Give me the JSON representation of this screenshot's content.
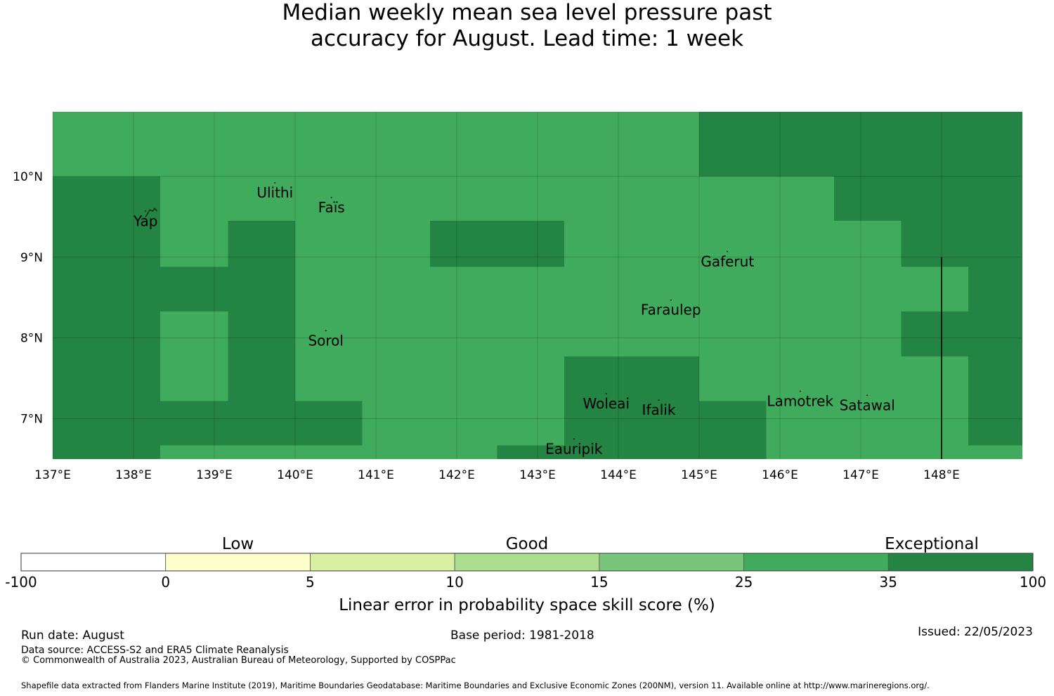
{
  "title": {
    "line1": "Median weekly mean sea level pressure past",
    "line2": "accuracy for August. Lead time: 1 week"
  },
  "map": {
    "lon_range": [
      137,
      149
    ],
    "lat_range": [
      6.5,
      10.8
    ],
    "lon_ticks": [
      {
        "value": 137,
        "label": "137°E"
      },
      {
        "value": 138,
        "label": "138°E"
      },
      {
        "value": 139,
        "label": "139°E"
      },
      {
        "value": 140,
        "label": "140°E"
      },
      {
        "value": 141,
        "label": "141°E"
      },
      {
        "value": 142,
        "label": "142°E"
      },
      {
        "value": 143,
        "label": "143°E"
      },
      {
        "value": 144,
        "label": "144°E"
      },
      {
        "value": 145,
        "label": "145°E"
      },
      {
        "value": 146,
        "label": "146°E"
      },
      {
        "value": 147,
        "label": "147°E"
      },
      {
        "value": 148,
        "label": "148°E"
      }
    ],
    "lat_ticks": [
      {
        "value": 10,
        "label": "10°N"
      },
      {
        "value": 9,
        "label": "9°N"
      },
      {
        "value": 8,
        "label": "8°N"
      },
      {
        "value": 7,
        "label": "7°N"
      }
    ],
    "colors": {
      "skill_25_35": "#41ab5d",
      "skill_35_100": "#238443"
    },
    "dark_cells": [
      {
        "lon": [
          145.0,
          149.0
        ],
        "lat": [
          10.0,
          10.8
        ]
      },
      {
        "lon": [
          137.0,
          138.33
        ],
        "lat": [
          6.5,
          10.0
        ]
      },
      {
        "lon": [
          146.67,
          149.0
        ],
        "lat": [
          9.45,
          10.0
        ]
      },
      {
        "lon": [
          139.17,
          140.0
        ],
        "lat": [
          8.33,
          9.45
        ]
      },
      {
        "lon": [
          141.67,
          143.33
        ],
        "lat": [
          8.88,
          9.45
        ]
      },
      {
        "lon": [
          147.5,
          149.0
        ],
        "lat": [
          8.88,
          9.45
        ]
      },
      {
        "lon": [
          138.33,
          140.0
        ],
        "lat": [
          8.33,
          8.88
        ]
      },
      {
        "lon": [
          148.33,
          149.0
        ],
        "lat": [
          7.22,
          8.88
        ]
      },
      {
        "lon": [
          139.17,
          140.0
        ],
        "lat": [
          7.22,
          8.33
        ]
      },
      {
        "lon": [
          147.5,
          148.33
        ],
        "lat": [
          7.77,
          8.33
        ]
      },
      {
        "lon": [
          143.33,
          145.0
        ],
        "lat": [
          7.22,
          7.77
        ]
      },
      {
        "lon": [
          148.33,
          149.0
        ],
        "lat": [
          6.67,
          7.22
        ]
      },
      {
        "lon": [
          138.33,
          140.83
        ],
        "lat": [
          6.67,
          7.22
        ]
      },
      {
        "lon": [
          143.33,
          145.83
        ],
        "lat": [
          6.5,
          7.22
        ]
      },
      {
        "lon": [
          142.5,
          144.17
        ],
        "lat": [
          6.5,
          6.67
        ]
      },
      {
        "lon": [
          144.17,
          145.83
        ],
        "lat": [
          6.5,
          6.67
        ]
      }
    ],
    "places": [
      {
        "name": "Yap",
        "lon": 138.15,
        "lat": 9.5
      },
      {
        "name": "Ulithi",
        "lon": 139.75,
        "lat": 9.85
      },
      {
        "name": "Faïs",
        "lon": 140.45,
        "lat": 9.67
      },
      {
        "name": "Gaferut",
        "lon": 145.35,
        "lat": 9.0
      },
      {
        "name": "Faraulep",
        "lon": 144.65,
        "lat": 8.4
      },
      {
        "name": "Sorol",
        "lon": 140.38,
        "lat": 8.02
      },
      {
        "name": "Woleai",
        "lon": 143.85,
        "lat": 7.24
      },
      {
        "name": "Ifalik",
        "lon": 144.5,
        "lat": 7.16
      },
      {
        "name": "Lamotrek",
        "lon": 146.25,
        "lat": 7.27
      },
      {
        "name": "Satawal",
        "lon": 147.08,
        "lat": 7.22
      },
      {
        "name": "Eauripik",
        "lon": 143.45,
        "lat": 6.68
      }
    ]
  },
  "colorbar": {
    "categories": [
      "Low",
      "Good",
      "Exceptional"
    ],
    "bins": [
      {
        "from": "-100",
        "to": "0",
        "color": "#ffffff"
      },
      {
        "from": "0",
        "to": "5",
        "color": "#ffffcc"
      },
      {
        "from": "5",
        "to": "10",
        "color": "#d9f0a3"
      },
      {
        "from": "10",
        "to": "15",
        "color": "#addd8e"
      },
      {
        "from": "15",
        "to": "25",
        "color": "#78c679"
      },
      {
        "from": "25",
        "to": "35",
        "color": "#41ab5d"
      },
      {
        "from": "35",
        "to": "100",
        "color": "#238443"
      }
    ],
    "tick_labels": [
      "-100",
      "0",
      "5",
      "10",
      "15",
      "25",
      "35",
      "100"
    ],
    "label": "Linear error in probability space skill score (%)"
  },
  "footer": {
    "run_date": "Run date: August",
    "base_period": "Base period: 1981-2018",
    "issued": "Issued: 22/05/2023",
    "data_source": "Data source: ACCESS-S2 and ERA5 Climate Reanalysis",
    "copyright": "© Commonwealth of Australia 2023, Australian Bureau of Meteorology, Supported by COSPPac",
    "shapefile": "Shapefile data extracted from Flanders Marine Institute (2019), Maritime Boundaries Geodatabase: Maritime Boundaries and Exclusive Economic Zones (200NM), version 11. Available online at http://www.marineregions.org/."
  }
}
